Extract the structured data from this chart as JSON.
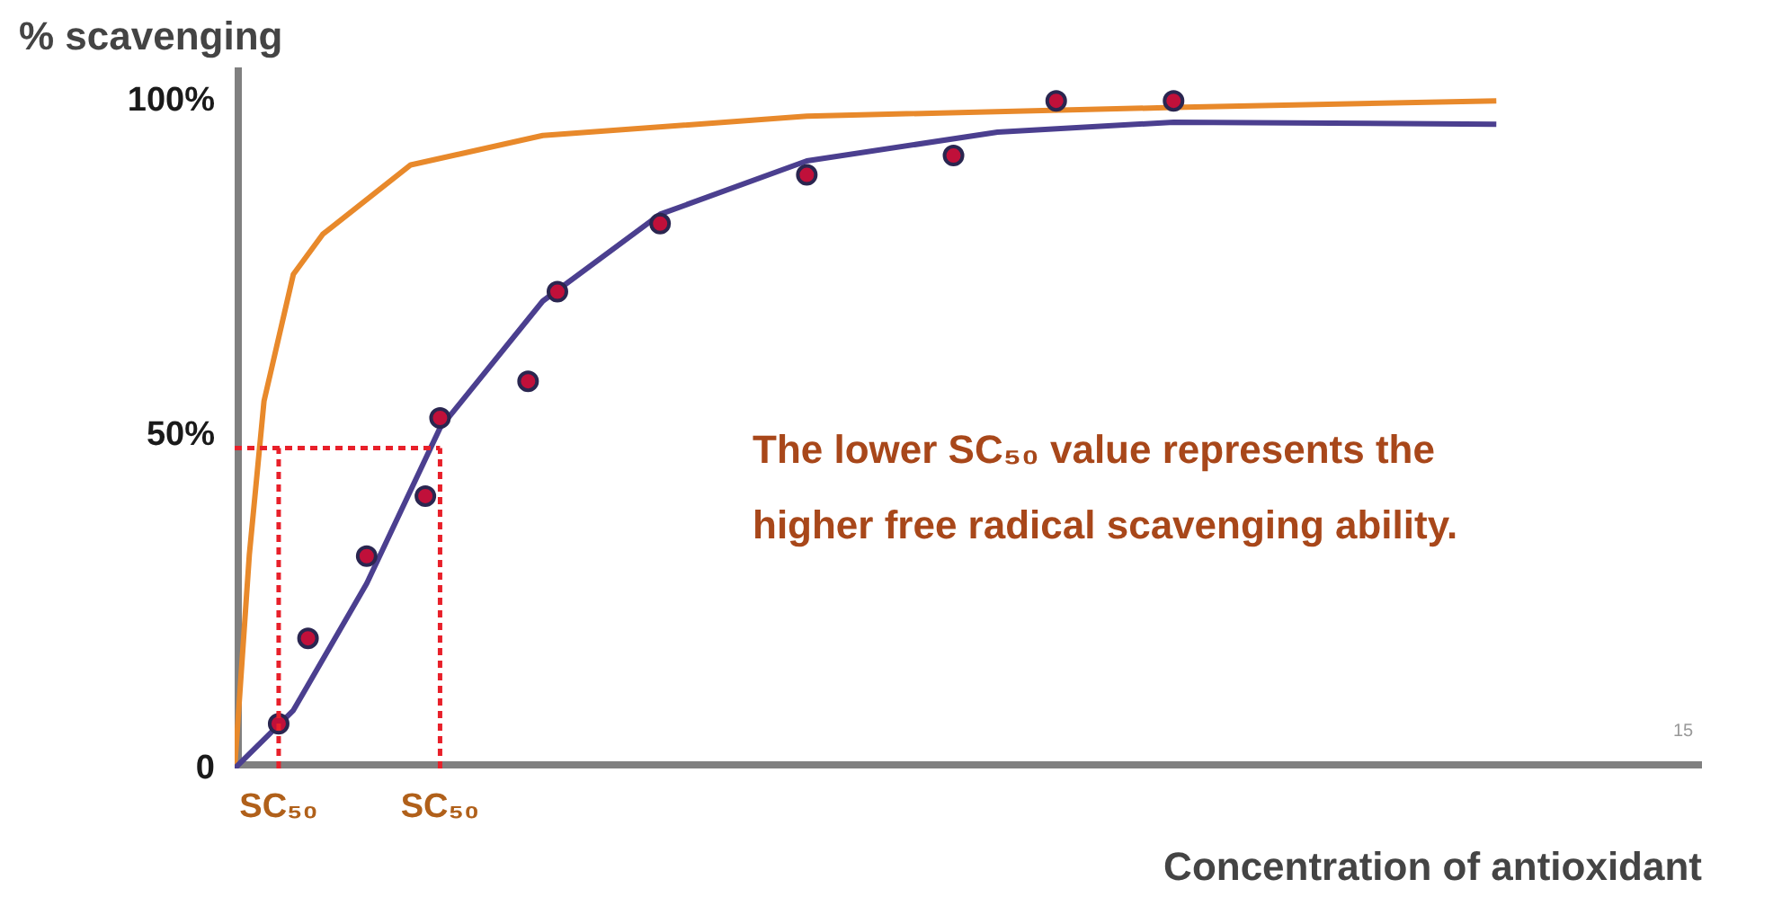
{
  "chart_data": {
    "type": "line",
    "ylabel": "% scavenging",
    "xlabel": "Concentration of antioxidant",
    "categories": [
      null,
      null,
      null,
      "SC₅₀",
      null,
      null,
      null,
      null,
      null,
      null,
      null,
      null,
      null,
      null,
      "SC₅₀",
      null,
      null,
      null,
      null,
      null,
      null,
      null,
      null,
      null,
      null,
      null,
      null,
      null,
      null,
      null,
      null,
      null,
      null,
      null,
      null,
      null,
      null,
      null,
      null,
      null,
      null,
      null,
      null,
      null,
      null,
      null,
      null,
      null,
      null,
      null,
      null,
      null,
      null,
      null,
      null,
      null,
      null,
      null,
      null,
      null,
      null,
      null,
      null,
      null,
      null,
      null,
      null,
      null,
      null,
      null,
      null,
      null,
      null,
      null,
      null,
      null,
      null,
      null,
      null,
      null,
      null,
      null,
      null,
      null,
      null,
      null,
      null
    ],
    "ylim": [
      0,
      105
    ],
    "yticks": [
      0,
      {
        "value": 50,
        "label": "50%"
      },
      {
        "value": 100,
        "label": "100%"
      }
    ],
    "grid": false,
    "series": [
      {
        "color": "#e8892b",
        "values": [
          0,
          32,
          55,
          null,
          74,
          null,
          80,
          null,
          null,
          null,
          null,
          null,
          90.4,
          null,
          null,
          null,
          null,
          null,
          null,
          null,
          null,
          94.8,
          null,
          null,
          null,
          null,
          null,
          null,
          null,
          null,
          null,
          null,
          null,
          null,
          null,
          null,
          null,
          null,
          null,
          97.7,
          null,
          null,
          null,
          null,
          null,
          null,
          null,
          null,
          null,
          null,
          null,
          null,
          null,
          null,
          null,
          null,
          null,
          null,
          null,
          null,
          null,
          null,
          null,
          null,
          99,
          null,
          null,
          null,
          null,
          null,
          null,
          null,
          null,
          null,
          null,
          null,
          null,
          null,
          null,
          null,
          null,
          null,
          null,
          null,
          null,
          null,
          100
        ]
      },
      {
        "color": "#4b3f8f",
        "values": [
          0,
          null,
          null,
          null,
          8.7,
          null,
          null,
          null,
          null,
          27.7,
          null,
          null,
          null,
          null,
          51,
          null,
          null,
          null,
          null,
          null,
          null,
          70,
          null,
          null,
          null,
          null,
          null,
          null,
          null,
          83,
          null,
          null,
          null,
          null,
          null,
          null,
          null,
          null,
          null,
          91,
          null,
          null,
          null,
          null,
          null,
          null,
          null,
          null,
          null,
          null,
          null,
          null,
          95.3,
          null,
          null,
          null,
          null,
          null,
          null,
          null,
          null,
          null,
          null,
          null,
          96.8,
          null,
          null,
          null,
          null,
          null,
          null,
          null,
          null,
          null,
          null,
          null,
          null,
          null,
          null,
          null,
          null,
          null,
          null,
          null,
          null,
          null,
          96.5
        ]
      },
      {
        "type": "scatter",
        "color": "#c0103a",
        "marker": "circle",
        "values": [
          null,
          null,
          null,
          6.7,
          null,
          19.5,
          null,
          null,
          null,
          31.8,
          null,
          null,
          null,
          40.8,
          52.5,
          null,
          null,
          null,
          null,
          null,
          58,
          null,
          71.4,
          null,
          null,
          null,
          null,
          null,
          null,
          81.6,
          null,
          null,
          null,
          null,
          null,
          null,
          null,
          null,
          null,
          88.9,
          null,
          null,
          null,
          null,
          null,
          null,
          null,
          null,
          null,
          91.8,
          null,
          null,
          null,
          null,
          null,
          null,
          100,
          null,
          null,
          null,
          null,
          null,
          null,
          null,
          100,
          null,
          null,
          null,
          null,
          null,
          null,
          null,
          null,
          null,
          null,
          null,
          null,
          null,
          null,
          null,
          null,
          null,
          null,
          null,
          null,
          null,
          null
        ]
      },
      {
        "color": "#e8202a",
        "line_style": "dashed",
        "values": [
          48,
          null,
          null,
          48,
          null,
          null,
          null,
          null,
          null,
          null,
          null,
          null,
          null,
          null,
          48,
          null,
          null,
          null,
          null,
          null,
          null,
          null,
          null,
          null,
          null,
          null,
          null,
          null,
          null,
          null,
          null,
          null,
          null,
          null,
          null,
          null,
          null,
          null,
          null,
          null,
          null,
          null,
          null,
          null,
          null,
          null,
          null,
          null,
          null,
          null,
          null,
          null,
          null,
          null,
          null,
          null,
          null,
          null,
          null,
          null,
          null,
          null,
          null,
          null,
          null,
          null,
          null,
          null,
          null,
          null,
          null,
          null,
          null,
          null,
          null,
          null,
          null,
          null,
          null,
          null,
          null,
          null,
          null,
          null,
          null,
          null,
          null
        ],
        "errors": [
          null,
          null,
          null,
          [
            0,
            48
          ],
          null,
          null,
          null,
          null,
          null,
          null,
          null,
          null,
          null,
          null,
          [
            0,
            48
          ],
          null,
          null,
          null,
          null,
          null,
          null,
          null,
          null,
          null,
          null,
          null,
          null,
          null,
          null,
          null,
          null,
          null,
          null,
          null,
          null,
          null,
          null,
          null,
          null,
          null,
          null,
          null,
          null,
          null,
          null,
          null,
          null,
          null,
          null,
          null,
          null,
          null,
          null,
          null,
          null,
          null,
          null,
          null,
          null,
          null,
          null,
          null,
          null,
          null,
          null,
          null,
          null,
          null,
          null,
          null,
          null,
          null,
          null,
          null,
          null,
          null,
          null,
          null,
          null,
          null,
          null,
          null,
          null,
          null,
          null,
          null,
          null
        ]
      }
    ],
    "annotations": [
      "The lower SC₅₀ value represents the higher free radical scavenging ability.",
      "15"
    ]
  }
}
